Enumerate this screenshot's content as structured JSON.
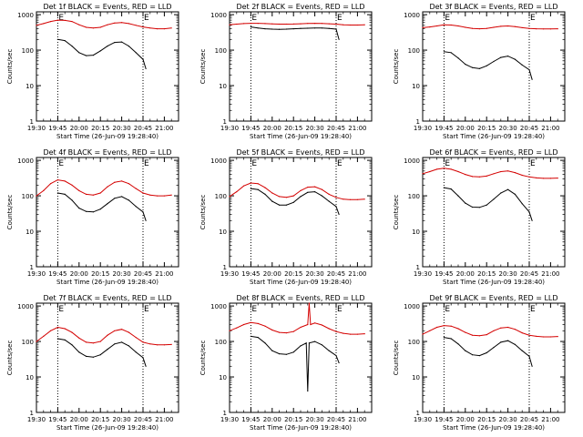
{
  "figure": {
    "background": "#ffffff"
  },
  "colors": {
    "events": "#000000",
    "lld": "#d40000",
    "axes": "#000000"
  },
  "chart_data": [
    {
      "type": "line",
      "title": "Det 1f BLACK = Events, RED = LLD",
      "xlabel": "Start Time (26-Jun-09 19:28:40)",
      "ylabel": "Counts/sec",
      "x_ticks": [
        "19:30",
        "19:45",
        "20:00",
        "20:15",
        "20:30",
        "20:45",
        "21:00"
      ],
      "y_ticks": [
        "1",
        "10",
        "100",
        "1000"
      ],
      "yscale": "log",
      "ylim": [
        1,
        1200
      ],
      "markers": [
        "19:45",
        "20:45"
      ],
      "marker_labels": [
        "E",
        "E"
      ],
      "series": [
        {
          "name": "Events",
          "color": "#000000",
          "x": [
            "19:45",
            "19:50",
            "19:55",
            "20:00",
            "20:05",
            "20:10",
            "20:15",
            "20:20",
            "20:25",
            "20:30",
            "20:35",
            "20:40",
            "20:45",
            "20:47"
          ],
          "y": [
            200,
            185,
            130,
            85,
            70,
            72,
            95,
            130,
            165,
            170,
            130,
            85,
            55,
            30
          ]
        },
        {
          "name": "LLD",
          "color": "#d40000",
          "x": [
            "19:30",
            "19:35",
            "19:40",
            "19:45",
            "19:50",
            "19:55",
            "20:00",
            "20:05",
            "20:10",
            "20:15",
            "20:20",
            "20:25",
            "20:30",
            "20:35",
            "20:40",
            "20:45",
            "20:50",
            "20:55",
            "21:00",
            "21:05"
          ],
          "y": [
            500,
            560,
            640,
            700,
            690,
            640,
            520,
            440,
            420,
            440,
            520,
            580,
            600,
            560,
            500,
            450,
            420,
            400,
            400,
            420
          ]
        }
      ]
    },
    {
      "type": "line",
      "title": "Det 2f BLACK = Events, RED = LLD",
      "xlabel": "Start Time (26-Jun-09 19:28:40)",
      "ylabel": "Counts/sec",
      "x_ticks": [
        "19:30",
        "19:45",
        "20:00",
        "20:15",
        "20:30",
        "20:45",
        "21:00"
      ],
      "y_ticks": [
        "1",
        "10",
        "100",
        "1000"
      ],
      "yscale": "log",
      "ylim": [
        1,
        1200
      ],
      "markers": [
        "19:45",
        "20:45"
      ],
      "marker_labels": [
        "E",
        "E"
      ],
      "series": [
        {
          "name": "Events",
          "color": "#000000",
          "x": [
            "19:45",
            "19:50",
            "19:55",
            "20:00",
            "20:05",
            "20:10",
            "20:15",
            "20:20",
            "20:25",
            "20:30",
            "20:35",
            "20:40",
            "20:45",
            "20:47"
          ],
          "y": [
            450,
            420,
            400,
            390,
            385,
            390,
            400,
            410,
            415,
            420,
            420,
            410,
            390,
            200
          ]
        },
        {
          "name": "LLD",
          "color": "#d40000",
          "x": [
            "19:30",
            "19:35",
            "19:40",
            "19:45",
            "19:50",
            "19:55",
            "20:00",
            "20:05",
            "20:10",
            "20:15",
            "20:20",
            "20:25",
            "20:30",
            "20:35",
            "20:40",
            "20:45",
            "20:50",
            "20:55",
            "21:00",
            "21:05"
          ],
          "y": [
            520,
            540,
            560,
            570,
            570,
            560,
            550,
            540,
            540,
            545,
            555,
            565,
            570,
            565,
            555,
            540,
            520,
            510,
            510,
            520
          ]
        }
      ]
    },
    {
      "type": "line",
      "title": "Det 3f BLACK = Events, RED = LLD",
      "xlabel": "Start Time (26-Jun-09 19:28:40)",
      "ylabel": "Counts/sec",
      "x_ticks": [
        "19:30",
        "19:45",
        "20:00",
        "20:15",
        "20:30",
        "20:45",
        "21:00"
      ],
      "y_ticks": [
        "1",
        "10",
        "100",
        "1000"
      ],
      "yscale": "log",
      "ylim": [
        1,
        1200
      ],
      "markers": [
        "19:45",
        "20:45"
      ],
      "marker_labels": [
        "E",
        "E"
      ],
      "series": [
        {
          "name": "Events",
          "color": "#000000",
          "x": [
            "19:45",
            "19:50",
            "19:55",
            "20:00",
            "20:05",
            "20:10",
            "20:15",
            "20:20",
            "20:25",
            "20:30",
            "20:35",
            "20:40",
            "20:45",
            "20:47"
          ],
          "y": [
            90,
            85,
            60,
            40,
            32,
            30,
            36,
            48,
            62,
            68,
            55,
            38,
            28,
            15
          ]
        },
        {
          "name": "LLD",
          "color": "#d40000",
          "x": [
            "19:30",
            "19:35",
            "19:40",
            "19:45",
            "19:50",
            "19:55",
            "20:00",
            "20:05",
            "20:10",
            "20:15",
            "20:20",
            "20:25",
            "20:30",
            "20:35",
            "20:40",
            "20:45",
            "20:50",
            "20:55",
            "21:00",
            "21:05"
          ],
          "y": [
            430,
            450,
            480,
            520,
            510,
            480,
            440,
            410,
            400,
            410,
            440,
            470,
            480,
            460,
            430,
            410,
            400,
            395,
            395,
            400
          ]
        }
      ]
    },
    {
      "type": "line",
      "title": "Det 4f BLACK = Events, RED = LLD",
      "xlabel": "Start Time (26-Jun-09 19:28:40)",
      "ylabel": "Counts/sec",
      "x_ticks": [
        "19:30",
        "19:45",
        "20:00",
        "20:15",
        "20:30",
        "20:45",
        "21:00"
      ],
      "y_ticks": [
        "1",
        "10",
        "100",
        "1000"
      ],
      "yscale": "log",
      "ylim": [
        1,
        1200
      ],
      "markers": [
        "19:45",
        "20:45"
      ],
      "marker_labels": [
        "E",
        "E"
      ],
      "series": [
        {
          "name": "Events",
          "color": "#000000",
          "x": [
            "19:45",
            "19:50",
            "19:55",
            "20:00",
            "20:05",
            "20:10",
            "20:15",
            "20:20",
            "20:25",
            "20:30",
            "20:35",
            "20:40",
            "20:45",
            "20:47"
          ],
          "y": [
            120,
            110,
            75,
            45,
            36,
            35,
            42,
            60,
            85,
            95,
            75,
            50,
            35,
            20
          ]
        },
        {
          "name": "LLD",
          "color": "#d40000",
          "x": [
            "19:30",
            "19:35",
            "19:40",
            "19:45",
            "19:50",
            "19:55",
            "20:00",
            "20:05",
            "20:10",
            "20:15",
            "20:20",
            "20:25",
            "20:30",
            "20:35",
            "20:40",
            "20:45",
            "20:50",
            "20:55",
            "21:00",
            "21:05"
          ],
          "y": [
            100,
            140,
            220,
            280,
            260,
            200,
            140,
            110,
            105,
            120,
            180,
            240,
            260,
            220,
            160,
            120,
            105,
            100,
            100,
            105
          ]
        }
      ]
    },
    {
      "type": "line",
      "title": "Det 5f BLACK = Events, RED = LLD",
      "xlabel": "Start Time (26-Jun-09 19:28:40)",
      "ylabel": "Counts/sec",
      "x_ticks": [
        "19:30",
        "19:45",
        "20:00",
        "20:15",
        "20:30",
        "20:45",
        "21:00"
      ],
      "y_ticks": [
        "1",
        "10",
        "100",
        "1000"
      ],
      "yscale": "log",
      "ylim": [
        1,
        1200
      ],
      "markers": [
        "19:45",
        "20:45"
      ],
      "marker_labels": [
        "E",
        "E"
      ],
      "series": [
        {
          "name": "Events",
          "color": "#000000",
          "x": [
            "19:45",
            "19:50",
            "19:55",
            "20:00",
            "20:05",
            "20:10",
            "20:15",
            "20:20",
            "20:25",
            "20:30",
            "20:35",
            "20:40",
            "20:45",
            "20:47"
          ],
          "y": [
            160,
            150,
            110,
            70,
            55,
            55,
            65,
            95,
            125,
            130,
            100,
            70,
            50,
            30
          ]
        },
        {
          "name": "LLD",
          "color": "#d40000",
          "x": [
            "19:30",
            "19:35",
            "19:40",
            "19:45",
            "19:50",
            "19:55",
            "20:00",
            "20:05",
            "20:10",
            "20:15",
            "20:20",
            "20:25",
            "20:30",
            "20:35",
            "20:40",
            "20:45",
            "20:50",
            "20:55",
            "21:00",
            "21:05"
          ],
          "y": [
            95,
            130,
            190,
            230,
            220,
            170,
            120,
            95,
            90,
            100,
            140,
            175,
            180,
            150,
            110,
            90,
            80,
            78,
            78,
            80
          ]
        }
      ]
    },
    {
      "type": "line",
      "title": "Det 6f BLACK = Events, RED = LLD",
      "xlabel": "Start Time (26-Jun-09 19:28:40)",
      "ylabel": "Counts/sec",
      "x_ticks": [
        "19:30",
        "19:45",
        "20:00",
        "20:15",
        "20:30",
        "20:45",
        "21:00"
      ],
      "y_ticks": [
        "1",
        "10",
        "100",
        "1000"
      ],
      "yscale": "log",
      "ylim": [
        1,
        1200
      ],
      "markers": [
        "19:45",
        "20:45"
      ],
      "marker_labels": [
        "E",
        "E"
      ],
      "series": [
        {
          "name": "Events",
          "color": "#000000",
          "x": [
            "19:45",
            "19:50",
            "19:55",
            "20:00",
            "20:05",
            "20:10",
            "20:15",
            "20:20",
            "20:25",
            "20:30",
            "20:35",
            "20:40",
            "20:45",
            "20:47"
          ],
          "y": [
            170,
            155,
            100,
            62,
            48,
            47,
            55,
            80,
            120,
            150,
            110,
            60,
            35,
            20
          ]
        },
        {
          "name": "LLD",
          "color": "#d40000",
          "x": [
            "19:30",
            "19:35",
            "19:40",
            "19:45",
            "19:50",
            "19:55",
            "20:00",
            "20:05",
            "20:10",
            "20:15",
            "20:20",
            "20:25",
            "20:30",
            "20:35",
            "20:40",
            "20:45",
            "20:50",
            "20:55",
            "21:00",
            "21:05"
          ],
          "y": [
            420,
            480,
            560,
            600,
            560,
            480,
            400,
            350,
            340,
            360,
            420,
            480,
            500,
            450,
            380,
            340,
            320,
            310,
            310,
            315
          ]
        }
      ]
    },
    {
      "type": "line",
      "title": "Det 7f BLACK = Events, RED = LLD",
      "xlabel": "Start Time (26-Jun-09 19:28:40)",
      "ylabel": "Counts/sec",
      "x_ticks": [
        "19:30",
        "19:45",
        "20:00",
        "20:15",
        "20:30",
        "20:45",
        "21:00"
      ],
      "y_ticks": [
        "1",
        "10",
        "100",
        "1000"
      ],
      "yscale": "log",
      "ylim": [
        1,
        1200
      ],
      "markers": [
        "19:45",
        "20:45"
      ],
      "marker_labels": [
        "E",
        "E"
      ],
      "series": [
        {
          "name": "Events",
          "color": "#000000",
          "x": [
            "19:45",
            "19:50",
            "19:55",
            "20:00",
            "20:05",
            "20:10",
            "20:15",
            "20:20",
            "20:25",
            "20:30",
            "20:35",
            "20:40",
            "20:45",
            "20:47"
          ],
          "y": [
            120,
            110,
            80,
            50,
            38,
            36,
            42,
            60,
            85,
            95,
            75,
            50,
            35,
            20
          ]
        },
        {
          "name": "LLD",
          "color": "#d40000",
          "x": [
            "19:30",
            "19:35",
            "19:40",
            "19:45",
            "19:50",
            "19:55",
            "20:00",
            "20:05",
            "20:10",
            "20:15",
            "20:20",
            "20:25",
            "20:30",
            "20:35",
            "20:40",
            "20:45",
            "20:50",
            "20:55",
            "21:00",
            "21:05"
          ],
          "y": [
            100,
            140,
            200,
            250,
            230,
            180,
            125,
            95,
            90,
            100,
            150,
            200,
            220,
            180,
            130,
            95,
            85,
            80,
            80,
            82
          ]
        }
      ]
    },
    {
      "type": "line",
      "title": "Det 8f BLACK = Events, RED = LLD",
      "xlabel": "Start Time (26-Jun-09 19:28:40)",
      "ylabel": "Counts/sec",
      "x_ticks": [
        "19:30",
        "19:45",
        "20:00",
        "20:15",
        "20:30",
        "20:45",
        "21:00"
      ],
      "y_ticks": [
        "1",
        "10",
        "100",
        "1000"
      ],
      "yscale": "log",
      "ylim": [
        1,
        1200
      ],
      "markers": [
        "19:45",
        "20:45"
      ],
      "marker_labels": [
        "E",
        "E"
      ],
      "series": [
        {
          "name": "Events",
          "color": "#000000",
          "x": [
            "19:45",
            "19:50",
            "19:55",
            "20:00",
            "20:05",
            "20:10",
            "20:15",
            "20:20",
            "20:24",
            "20:25",
            "20:26",
            "20:30",
            "20:35",
            "20:40",
            "20:45",
            "20:47"
          ],
          "y": [
            140,
            130,
            90,
            55,
            45,
            43,
            50,
            75,
            90,
            4,
            90,
            100,
            80,
            55,
            40,
            25
          ]
        },
        {
          "name": "LLD",
          "color": "#d40000",
          "x": [
            "19:30",
            "19:35",
            "19:40",
            "19:45",
            "19:50",
            "19:55",
            "20:00",
            "20:05",
            "20:10",
            "20:15",
            "20:20",
            "20:25",
            "20:26",
            "20:27",
            "20:30",
            "20:35",
            "20:40",
            "20:45",
            "20:50",
            "20:55",
            "21:00",
            "21:05"
          ],
          "y": [
            200,
            240,
            300,
            340,
            320,
            270,
            210,
            180,
            175,
            190,
            250,
            300,
            1200,
            300,
            330,
            290,
            230,
            190,
            170,
            160,
            160,
            165
          ]
        }
      ]
    },
    {
      "type": "line",
      "title": "Det 9f BLACK = Events, RED = LLD",
      "xlabel": "Start Time (26-Jun-09 19:28:40)",
      "ylabel": "Counts/sec",
      "x_ticks": [
        "19:30",
        "19:45",
        "20:00",
        "20:15",
        "20:30",
        "20:45",
        "21:00"
      ],
      "y_ticks": [
        "1",
        "10",
        "100",
        "1000"
      ],
      "yscale": "log",
      "ylim": [
        1,
        1200
      ],
      "markers": [
        "19:45",
        "20:45"
      ],
      "marker_labels": [
        "E",
        "E"
      ],
      "series": [
        {
          "name": "Events",
          "color": "#000000",
          "x": [
            "19:45",
            "19:50",
            "19:55",
            "20:00",
            "20:05",
            "20:10",
            "20:15",
            "20:20",
            "20:25",
            "20:30",
            "20:35",
            "20:40",
            "20:45",
            "20:47"
          ],
          "y": [
            130,
            120,
            85,
            55,
            42,
            40,
            48,
            68,
            95,
            105,
            82,
            55,
            38,
            20
          ]
        },
        {
          "name": "LLD",
          "color": "#d40000",
          "x": [
            "19:30",
            "19:35",
            "19:40",
            "19:45",
            "19:50",
            "19:55",
            "20:00",
            "20:05",
            "20:10",
            "20:15",
            "20:20",
            "20:25",
            "20:30",
            "20:35",
            "20:40",
            "20:45",
            "20:50",
            "20:55",
            "21:00",
            "21:05"
          ],
          "y": [
            160,
            200,
            250,
            280,
            270,
            230,
            180,
            150,
            145,
            155,
            200,
            240,
            250,
            220,
            175,
            150,
            140,
            135,
            135,
            138
          ]
        }
      ]
    }
  ]
}
